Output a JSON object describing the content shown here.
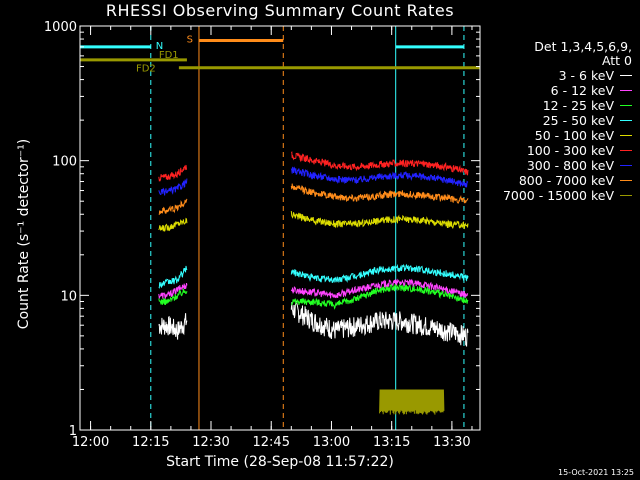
{
  "title": "RHESSI Observing Summary Count Rates",
  "footer": "15-Oct-2021 13:25",
  "chart_data": {
    "type": "line",
    "xlabel": "Start Time (28-Sep-08 11:57:22)",
    "ylabel": "Count Rate (s⁻¹ detector⁻¹)",
    "yscale": "log",
    "ylim": [
      1,
      1000
    ],
    "xlim": [
      "11:57:22",
      "13:37:00"
    ],
    "x_ticks": [
      "12:00",
      "12:15",
      "12:30",
      "12:45",
      "13:00",
      "13:15",
      "13:30"
    ],
    "y_ticks": [
      "1",
      "10",
      "100",
      "1000"
    ],
    "legend_header": [
      "Det 1,3,4,5,6,9,",
      "Att 0"
    ],
    "legend_position": "right",
    "series": [
      {
        "name": "3 - 6 keV",
        "color": "#ffffff",
        "segments": [
          {
            "start": "12:17",
            "end": "12:24",
            "values": [
              6.0,
              6.0,
              5.5,
              6.5
            ]
          },
          {
            "start": "12:50",
            "end": "13:34",
            "values": [
              8.0,
              6.5,
              5.5,
              6.0,
              6.5,
              6.5,
              6.0,
              5.5,
              5.0
            ]
          }
        ]
      },
      {
        "name": "6 - 12 keV",
        "color": "#ff44ff",
        "segments": [
          {
            "start": "12:17",
            "end": "12:24",
            "values": [
              10.0,
              10.0,
              11.0,
              12.0
            ]
          },
          {
            "start": "12:50",
            "end": "13:34",
            "values": [
              11.0,
              10.5,
              10.0,
              11.0,
              12.0,
              12.5,
              12.0,
              11.0,
              10.0
            ]
          }
        ]
      },
      {
        "name": "12 - 25 keV",
        "color": "#22ff22",
        "segments": [
          {
            "start": "12:17",
            "end": "12:24",
            "values": [
              9.0,
              9.0,
              10.0,
              11.0
            ]
          },
          {
            "start": "12:50",
            "end": "13:34",
            "values": [
              9.0,
              9.0,
              8.5,
              9.5,
              11.0,
              11.5,
              11.0,
              10.0,
              9.0
            ]
          }
        ]
      },
      {
        "name": "25 - 50 keV",
        "color": "#33ffff",
        "segments": [
          {
            "start": "12:17",
            "end": "12:24",
            "values": [
              12.0,
              12.5,
              13.0,
              16.0
            ]
          },
          {
            "start": "12:50",
            "end": "13:34",
            "values": [
              15.0,
              13.5,
              13.0,
              14.0,
              15.5,
              16.0,
              15.5,
              14.5,
              13.5
            ]
          }
        ]
      },
      {
        "name": "50 - 100 keV",
        "color": "#dddd00",
        "segments": [
          {
            "start": "12:17",
            "end": "12:24",
            "values": [
              31,
              32,
              34,
              36
            ]
          },
          {
            "start": "12:50",
            "end": "13:34",
            "values": [
              40,
              36,
              34,
              34,
              36,
              37,
              36,
              34,
              33
            ]
          }
        ]
      },
      {
        "name": "100 - 300 keV",
        "color": "#ff2222",
        "segments": [
          {
            "start": "12:17",
            "end": "12:24",
            "values": [
              75,
              76,
              80,
              92
            ]
          },
          {
            "start": "12:50",
            "end": "13:34",
            "values": [
              110,
              100,
              92,
              90,
              94,
              96,
              95,
              90,
              82
            ]
          }
        ]
      },
      {
        "name": "300 - 800 keV",
        "color": "#2222ff",
        "segments": [
          {
            "start": "12:17",
            "end": "12:24",
            "values": [
              58,
              59,
              62,
              70
            ]
          },
          {
            "start": "12:50",
            "end": "13:34",
            "values": [
              85,
              78,
              73,
              72,
              76,
              78,
              76,
              72,
              66
            ]
          }
        ]
      },
      {
        "name": "800 - 7000 keV",
        "color": "#ff8c1a",
        "segments": [
          {
            "start": "12:17",
            "end": "12:24",
            "values": [
              42,
              43,
              45,
              50
            ]
          },
          {
            "start": "12:50",
            "end": "13:34",
            "values": [
              64,
              58,
              54,
              53,
              55,
              57,
              55,
              53,
              50
            ]
          }
        ]
      },
      {
        "name": "7000 - 15000 keV",
        "color": "#999900",
        "segments": [
          {
            "start": "13:12",
            "end": "13:28",
            "values": [
              1.3,
              2.0,
              1.3,
              2.0,
              1.3,
              2.0,
              1.3,
              2.0,
              1.3
            ]
          }
        ]
      }
    ],
    "state_bars": [
      {
        "label": "N",
        "color": "#33ffff",
        "level": 700,
        "intervals": [
          [
            "11:57:22",
            "12:15"
          ],
          [
            "13:16",
            "13:33"
          ]
        ]
      },
      {
        "label": "S",
        "color": "#ff8c1a",
        "level": 780,
        "intervals": [
          [
            "12:27",
            "12:48"
          ]
        ]
      },
      {
        "label": "FD1",
        "color": "#999900",
        "level": 560,
        "intervals": [
          [
            "11:57:22",
            "12:24"
          ]
        ]
      },
      {
        "label": "FD2",
        "color": "#999900",
        "level": 490,
        "intervals": [
          [
            "12:22",
            "13:37"
          ]
        ]
      }
    ],
    "vertical_markers": [
      {
        "color": "#33ffff",
        "style": "solid",
        "time": "11:57:22"
      },
      {
        "color": "#33ffff",
        "style": "dashed",
        "time": "12:15"
      },
      {
        "color": "#ff8c1a",
        "style": "solid",
        "time": "12:27"
      },
      {
        "color": "#ff8c1a",
        "style": "dashed",
        "time": "12:48"
      },
      {
        "color": "#33ffff",
        "style": "solid",
        "time": "13:16"
      },
      {
        "color": "#33ffff",
        "style": "dashed",
        "time": "13:33"
      }
    ]
  }
}
